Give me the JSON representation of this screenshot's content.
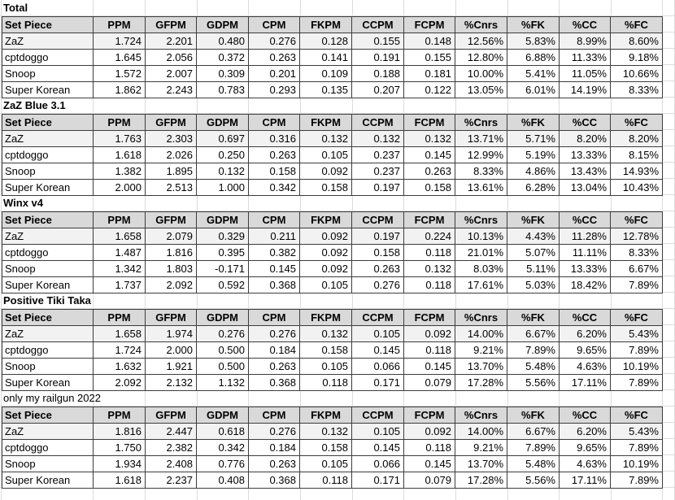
{
  "columns": [
    "Set Piece",
    "PPM",
    "GFPM",
    "GDPM",
    "CPM",
    "FKPM",
    "CCPM",
    "FCPM",
    "%Cnrs",
    "%FK",
    "%CC",
    "%FC"
  ],
  "colors": {
    "header_bg": "#d9d9d9",
    "highlight_row_bg": "#f2f2f2",
    "cell_border": "#3c3c3c",
    "gridline": "#dcdcdc",
    "text": "#000000"
  },
  "sections": [
    {
      "title": "Total",
      "title_bold": true,
      "rows": [
        {
          "label": "ZaZ",
          "highlight": true,
          "values": [
            "1.724",
            "2.201",
            "0.480",
            "0.276",
            "0.128",
            "0.155",
            "0.148",
            "12.56%",
            "5.83%",
            "8.99%",
            "8.60%"
          ]
        },
        {
          "label": "cptdoggo",
          "highlight": false,
          "values": [
            "1.645",
            "2.056",
            "0.372",
            "0.263",
            "0.141",
            "0.191",
            "0.155",
            "12.80%",
            "6.88%",
            "11.33%",
            "9.18%"
          ]
        },
        {
          "label": "Snoop",
          "highlight": false,
          "values": [
            "1.572",
            "2.007",
            "0.309",
            "0.201",
            "0.109",
            "0.188",
            "0.181",
            "10.00%",
            "5.41%",
            "11.05%",
            "10.66%"
          ]
        },
        {
          "label": "Super Korean",
          "highlight": false,
          "values": [
            "1.862",
            "2.243",
            "0.783",
            "0.293",
            "0.135",
            "0.207",
            "0.122",
            "13.05%",
            "6.01%",
            "14.19%",
            "8.33%"
          ]
        }
      ]
    },
    {
      "title": "ZaZ Blue 3.1",
      "title_bold": true,
      "rows": [
        {
          "label": "ZaZ",
          "highlight": true,
          "values": [
            "1.763",
            "2.303",
            "0.697",
            "0.316",
            "0.132",
            "0.132",
            "0.132",
            "13.71%",
            "5.71%",
            "8.20%",
            "8.20%"
          ]
        },
        {
          "label": "cptdoggo",
          "highlight": false,
          "values": [
            "1.618",
            "2.026",
            "0.250",
            "0.263",
            "0.105",
            "0.237",
            "0.145",
            "12.99%",
            "5.19%",
            "13.33%",
            "8.15%"
          ]
        },
        {
          "label": "Snoop",
          "highlight": false,
          "values": [
            "1.382",
            "1.895",
            "0.132",
            "0.158",
            "0.092",
            "0.237",
            "0.263",
            "8.33%",
            "4.86%",
            "13.43%",
            "14.93%"
          ]
        },
        {
          "label": "Super Korean",
          "highlight": false,
          "values": [
            "2.000",
            "2.513",
            "1.000",
            "0.342",
            "0.158",
            "0.197",
            "0.158",
            "13.61%",
            "6.28%",
            "13.04%",
            "10.43%"
          ]
        }
      ]
    },
    {
      "title": "Winx v4",
      "title_bold": true,
      "rows": [
        {
          "label": "ZaZ",
          "highlight": true,
          "values": [
            "1.658",
            "2.079",
            "0.329",
            "0.211",
            "0.092",
            "0.197",
            "0.224",
            "10.13%",
            "4.43%",
            "11.28%",
            "12.78%"
          ]
        },
        {
          "label": "cptdoggo",
          "highlight": false,
          "values": [
            "1.487",
            "1.816",
            "0.395",
            "0.382",
            "0.092",
            "0.158",
            "0.118",
            "21.01%",
            "5.07%",
            "11.11%",
            "8.33%"
          ]
        },
        {
          "label": "Snoop",
          "highlight": false,
          "values": [
            "1.342",
            "1.803",
            "-0.171",
            "0.145",
            "0.092",
            "0.263",
            "0.132",
            "8.03%",
            "5.11%",
            "13.33%",
            "6.67%"
          ]
        },
        {
          "label": "Super Korean",
          "highlight": false,
          "values": [
            "1.737",
            "2.092",
            "0.592",
            "0.368",
            "0.105",
            "0.276",
            "0.118",
            "17.61%",
            "5.03%",
            "18.42%",
            "7.89%"
          ]
        }
      ]
    },
    {
      "title": "Positive Tiki Taka",
      "title_bold": true,
      "rows": [
        {
          "label": "ZaZ",
          "highlight": true,
          "values": [
            "1.658",
            "1.974",
            "0.276",
            "0.276",
            "0.132",
            "0.105",
            "0.092",
            "14.00%",
            "6.67%",
            "6.20%",
            "5.43%"
          ]
        },
        {
          "label": "cptdoggo",
          "highlight": false,
          "values": [
            "1.724",
            "2.000",
            "0.500",
            "0.184",
            "0.158",
            "0.145",
            "0.118",
            "9.21%",
            "7.89%",
            "9.65%",
            "7.89%"
          ]
        },
        {
          "label": "Snoop",
          "highlight": false,
          "values": [
            "1.632",
            "1.921",
            "0.500",
            "0.263",
            "0.105",
            "0.066",
            "0.145",
            "13.70%",
            "5.48%",
            "4.63%",
            "10.19%"
          ]
        },
        {
          "label": "Super Korean",
          "highlight": false,
          "values": [
            "2.092",
            "2.132",
            "1.132",
            "0.368",
            "0.118",
            "0.171",
            "0.079",
            "17.28%",
            "5.56%",
            "17.11%",
            "7.89%"
          ]
        }
      ]
    },
    {
      "title": "only my railgun 2022",
      "title_bold": false,
      "rows": [
        {
          "label": "ZaZ",
          "highlight": true,
          "values": [
            "1.816",
            "2.447",
            "0.618",
            "0.276",
            "0.132",
            "0.105",
            "0.092",
            "14.00%",
            "6.67%",
            "6.20%",
            "5.43%"
          ]
        },
        {
          "label": "cptdoggo",
          "highlight": false,
          "values": [
            "1.750",
            "2.382",
            "0.342",
            "0.184",
            "0.158",
            "0.145",
            "0.118",
            "9.21%",
            "7.89%",
            "9.65%",
            "7.89%"
          ]
        },
        {
          "label": "Snoop",
          "highlight": false,
          "values": [
            "1.934",
            "2.408",
            "0.776",
            "0.263",
            "0.105",
            "0.066",
            "0.145",
            "13.70%",
            "5.48%",
            "4.63%",
            "10.19%"
          ]
        },
        {
          "label": "Super Korean",
          "highlight": false,
          "values": [
            "1.618",
            "2.237",
            "0.408",
            "0.368",
            "0.118",
            "0.171",
            "0.079",
            "17.28%",
            "5.56%",
            "17.11%",
            "7.89%"
          ]
        }
      ]
    }
  ]
}
